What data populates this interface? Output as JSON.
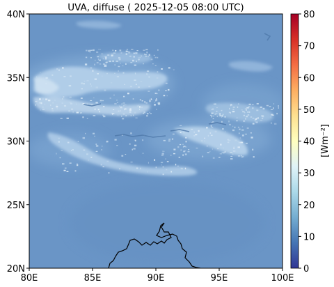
{
  "title": "UVA, diffuse ( 2025-12-05 08:00 UTC)",
  "map": {
    "lon_range": [
      80,
      100
    ],
    "lat_range": [
      20,
      40
    ],
    "x_ticks": [
      {
        "value": 80,
        "label": "80E"
      },
      {
        "value": 85,
        "label": "85E"
      },
      {
        "value": 90,
        "label": "90E"
      },
      {
        "value": 95,
        "label": "95E"
      },
      {
        "value": 100,
        "label": "100E"
      }
    ],
    "y_ticks": [
      {
        "value": 20,
        "label": "20N"
      },
      {
        "value": 25,
        "label": "25N"
      },
      {
        "value": 30,
        "label": "30N"
      },
      {
        "value": 35,
        "label": "35N"
      },
      {
        "value": 40,
        "label": "40N"
      }
    ],
    "background_color": "#6a95c6",
    "coastline_color": "#000000"
  },
  "colorbar": {
    "label": "[Wm⁻²]",
    "range": [
      0,
      80
    ],
    "ticks": [
      {
        "value": 0,
        "label": "0"
      },
      {
        "value": 10,
        "label": "10"
      },
      {
        "value": 20,
        "label": "20"
      },
      {
        "value": 30,
        "label": "30"
      },
      {
        "value": 40,
        "label": "40"
      },
      {
        "value": 50,
        "label": "50"
      },
      {
        "value": 60,
        "label": "60"
      },
      {
        "value": 70,
        "label": "70"
      },
      {
        "value": 80,
        "label": "80"
      }
    ],
    "colormap": [
      "#313695",
      "#4575b4",
      "#74add1",
      "#abd9e9",
      "#e0f3f8",
      "#ffffbf",
      "#fee090",
      "#fdae61",
      "#f46d43",
      "#d73027",
      "#a50026"
    ]
  }
}
